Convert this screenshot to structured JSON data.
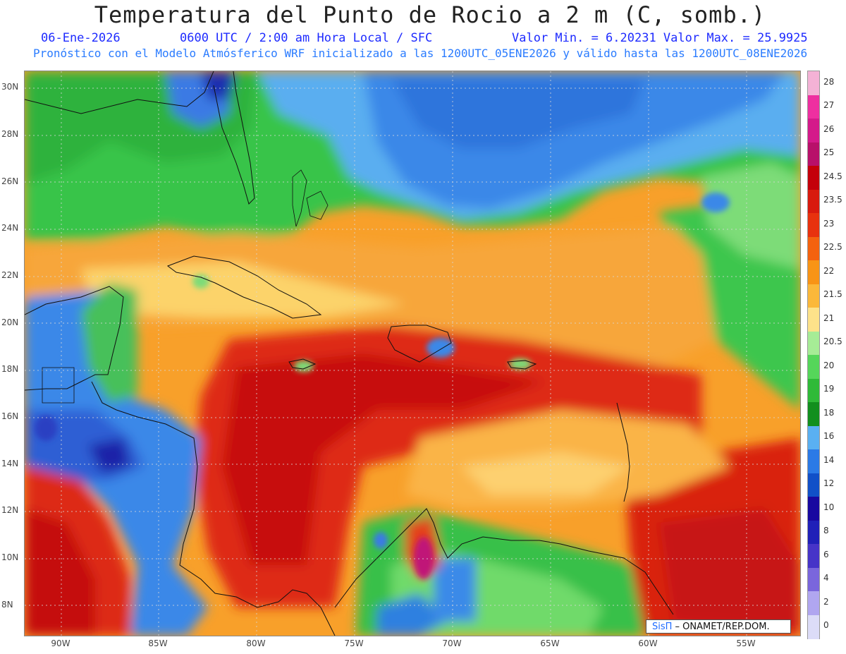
{
  "header": {
    "title": "Temperatura del Punto de Rocio a 2 m (C, somb.)",
    "date": "06-Ene-2026",
    "time": "0600 UTC / 2:00 am Hora Local / SFC",
    "minmax": "Valor Min. = 6.20231  Valor Max. = 25.9925",
    "model_line": "Pronóstico con el Modelo Atmósferico WRF inicializado a las 1200UTC_05ENE2026 y válido hasta las  1200UTC_08ENE2026"
  },
  "axes": {
    "lat_ticks": [
      "30N",
      "28N",
      "26N",
      "24N",
      "22N",
      "20N",
      "18N",
      "16N",
      "14N",
      "12N",
      "10N",
      "8N"
    ],
    "lon_ticks": [
      "90W",
      "85W",
      "80W",
      "75W",
      "70W",
      "65W",
      "60W",
      "55W"
    ]
  },
  "colorbar": {
    "labels": [
      "28",
      "27",
      "26",
      "25",
      "24.5",
      "23.5",
      "23",
      "22.5",
      "22",
      "21.5",
      "21",
      "20.5",
      "20",
      "19",
      "18",
      "16",
      "14",
      "12",
      "10",
      "8",
      "6",
      "4",
      "2",
      "0"
    ],
    "colors": [
      "#f4b2d6",
      "#ee2fa0",
      "#d41a8a",
      "#b8106a",
      "#c4000a",
      "#d81a0e",
      "#e8320e",
      "#f4620f",
      "#f89416",
      "#fbb83a",
      "#fde28a",
      "#a6ec96",
      "#55d65a",
      "#2fba38",
      "#128f1e",
      "#5ab0f2",
      "#2b7ae6",
      "#1150c8",
      "#1808a0",
      "#2020b8",
      "#4634c8",
      "#7a66dc",
      "#b0a6f0",
      "#dcdcf8"
    ]
  },
  "credit": {
    "sis": "SisΠ",
    "rest": " – ONAMET/REP.DOM."
  }
}
